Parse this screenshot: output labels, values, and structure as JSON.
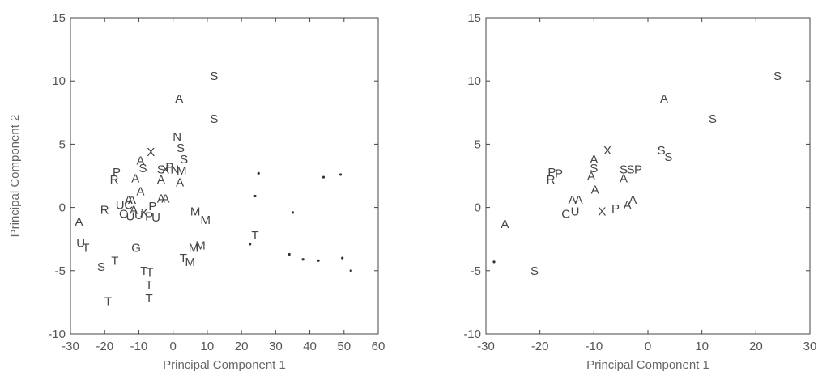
{
  "chart_data": [
    {
      "type": "scatter",
      "title": "",
      "xlabel": "Principal Component 1",
      "ylabel": "Principal Component 2",
      "xlim": [
        -30,
        60
      ],
      "ylim": [
        -10,
        15
      ],
      "xticks": [
        -30,
        -20,
        -10,
        0,
        10,
        20,
        30,
        40,
        50,
        60
      ],
      "yticks": [
        -10,
        -5,
        0,
        5,
        10,
        15
      ],
      "grid": false,
      "points": [
        {
          "x": 12,
          "y": 10.4,
          "label": "S"
        },
        {
          "x": 1.8,
          "y": 8.6,
          "label": "A"
        },
        {
          "x": 12,
          "y": 7.0,
          "label": "S"
        },
        {
          "x": 1.2,
          "y": 5.6,
          "label": "N"
        },
        {
          "x": 2.2,
          "y": 4.7,
          "label": "S"
        },
        {
          "x": 3.2,
          "y": 3.8,
          "label": "S"
        },
        {
          "x": -6.5,
          "y": 4.4,
          "label": "X"
        },
        {
          "x": -9.5,
          "y": 3.7,
          "label": "A"
        },
        {
          "x": -8.8,
          "y": 3.1,
          "label": "S"
        },
        {
          "x": -3.5,
          "y": 3.0,
          "label": "S"
        },
        {
          "x": -2.2,
          "y": 3.0,
          "label": "X"
        },
        {
          "x": -1,
          "y": 3.2,
          "label": "P"
        },
        {
          "x": 0.5,
          "y": 3.0,
          "label": "N"
        },
        {
          "x": 2.5,
          "y": 2.9,
          "label": "M"
        },
        {
          "x": -16.5,
          "y": 2.8,
          "label": "P"
        },
        {
          "x": -17.2,
          "y": 2.2,
          "label": "R"
        },
        {
          "x": -11,
          "y": 2.3,
          "label": "A"
        },
        {
          "x": -3.5,
          "y": 2.2,
          "label": "A"
        },
        {
          "x": 2,
          "y": 2.0,
          "label": "A"
        },
        {
          "x": -9.5,
          "y": 1.3,
          "label": "A"
        },
        {
          "x": -13,
          "y": 0.6,
          "label": "A"
        },
        {
          "x": -12,
          "y": 0.6,
          "label": "A"
        },
        {
          "x": -3.5,
          "y": 0.7,
          "label": "A"
        },
        {
          "x": -2.2,
          "y": 0.7,
          "label": "A"
        },
        {
          "x": -15.5,
          "y": 0.2,
          "label": "U"
        },
        {
          "x": -13,
          "y": 0.2,
          "label": "C"
        },
        {
          "x": -11.5,
          "y": -0.2,
          "label": "A"
        },
        {
          "x": -6,
          "y": 0.1,
          "label": "P"
        },
        {
          "x": -20,
          "y": -0.2,
          "label": "R"
        },
        {
          "x": -14.5,
          "y": -0.5,
          "label": "C"
        },
        {
          "x": -12.5,
          "y": -0.7,
          "label": "U"
        },
        {
          "x": -10,
          "y": -0.6,
          "label": "U"
        },
        {
          "x": -8.5,
          "y": -0.4,
          "label": "X"
        },
        {
          "x": -7,
          "y": -0.7,
          "label": "P"
        },
        {
          "x": -5,
          "y": -0.8,
          "label": "U"
        },
        {
          "x": 6.5,
          "y": -0.3,
          "label": "M"
        },
        {
          "x": 9.5,
          "y": -1.0,
          "label": "M"
        },
        {
          "x": -27.5,
          "y": -1.1,
          "label": "A"
        },
        {
          "x": -27,
          "y": -2.8,
          "label": "U"
        },
        {
          "x": -25.5,
          "y": -3.2,
          "label": "T"
        },
        {
          "x": -10.8,
          "y": -3.2,
          "label": "G"
        },
        {
          "x": 8,
          "y": -3.0,
          "label": "M"
        },
        {
          "x": 6,
          "y": -3.2,
          "label": "M"
        },
        {
          "x": 3,
          "y": -4.0,
          "label": "T"
        },
        {
          "x": 5,
          "y": -4.3,
          "label": "M"
        },
        {
          "x": 24,
          "y": -2.2,
          "label": "T"
        },
        {
          "x": -21,
          "y": -4.7,
          "label": "S"
        },
        {
          "x": -17,
          "y": -4.2,
          "label": "T"
        },
        {
          "x": -8.5,
          "y": -5.0,
          "label": "T"
        },
        {
          "x": -6.8,
          "y": -5.1,
          "label": "T"
        },
        {
          "x": -7,
          "y": -6.1,
          "label": "T"
        },
        {
          "x": -7,
          "y": -7.2,
          "label": "T"
        },
        {
          "x": -19,
          "y": -7.4,
          "label": "T"
        },
        {
          "x": 25,
          "y": 2.7,
          "label": "•"
        },
        {
          "x": 24,
          "y": 0.9,
          "label": "•"
        },
        {
          "x": 44,
          "y": 2.4,
          "label": "•"
        },
        {
          "x": 49,
          "y": 2.6,
          "label": "•"
        },
        {
          "x": 35,
          "y": -0.4,
          "label": "•"
        },
        {
          "x": 22.5,
          "y": -2.9,
          "label": "•"
        },
        {
          "x": 34,
          "y": -3.7,
          "label": "•"
        },
        {
          "x": 38,
          "y": -4.1,
          "label": "•"
        },
        {
          "x": 42.5,
          "y": -4.2,
          "label": "•"
        },
        {
          "x": 49.5,
          "y": -4.0,
          "label": "•"
        },
        {
          "x": 52,
          "y": -5.0,
          "label": "•"
        }
      ]
    },
    {
      "type": "scatter",
      "title": "",
      "xlabel": "Principal Component 1",
      "ylabel": "",
      "xlim": [
        -30,
        30
      ],
      "ylim": [
        -10,
        15
      ],
      "xticks": [
        -30,
        -20,
        -10,
        0,
        10,
        20,
        30
      ],
      "yticks": [
        -10,
        -5,
        0,
        5,
        10,
        15
      ],
      "grid": false,
      "points": [
        {
          "x": 24,
          "y": 10.4,
          "label": "S"
        },
        {
          "x": 3,
          "y": 8.6,
          "label": "A"
        },
        {
          "x": 12,
          "y": 7.0,
          "label": "S"
        },
        {
          "x": 2.5,
          "y": 4.5,
          "label": "S"
        },
        {
          "x": 3.8,
          "y": 4.0,
          "label": "S"
        },
        {
          "x": -7.5,
          "y": 4.5,
          "label": "X"
        },
        {
          "x": -10,
          "y": 3.8,
          "label": "A"
        },
        {
          "x": -10,
          "y": 3.1,
          "label": "S"
        },
        {
          "x": -10.5,
          "y": 2.5,
          "label": "A"
        },
        {
          "x": -4.5,
          "y": 3.0,
          "label": "S"
        },
        {
          "x": -3.2,
          "y": 3.0,
          "label": "S"
        },
        {
          "x": -1.8,
          "y": 3.0,
          "label": "P"
        },
        {
          "x": -4.5,
          "y": 2.3,
          "label": "A"
        },
        {
          "x": -17.8,
          "y": 2.8,
          "label": "P"
        },
        {
          "x": -16.5,
          "y": 2.7,
          "label": "P"
        },
        {
          "x": -18,
          "y": 2.2,
          "label": "R"
        },
        {
          "x": -9.8,
          "y": 1.4,
          "label": "A"
        },
        {
          "x": -14,
          "y": 0.6,
          "label": "A"
        },
        {
          "x": -12.8,
          "y": 0.6,
          "label": "A"
        },
        {
          "x": -2.8,
          "y": 0.6,
          "label": "A"
        },
        {
          "x": -3.8,
          "y": 0.2,
          "label": "A"
        },
        {
          "x": -15.2,
          "y": -0.5,
          "label": "C"
        },
        {
          "x": -13.5,
          "y": -0.3,
          "label": "U"
        },
        {
          "x": -8.5,
          "y": -0.3,
          "label": "X"
        },
        {
          "x": -6,
          "y": -0.1,
          "label": "P"
        },
        {
          "x": -26.5,
          "y": -1.3,
          "label": "A"
        },
        {
          "x": -21,
          "y": -5.0,
          "label": "S"
        },
        {
          "x": -28.5,
          "y": -4.3,
          "label": "•"
        }
      ]
    }
  ]
}
